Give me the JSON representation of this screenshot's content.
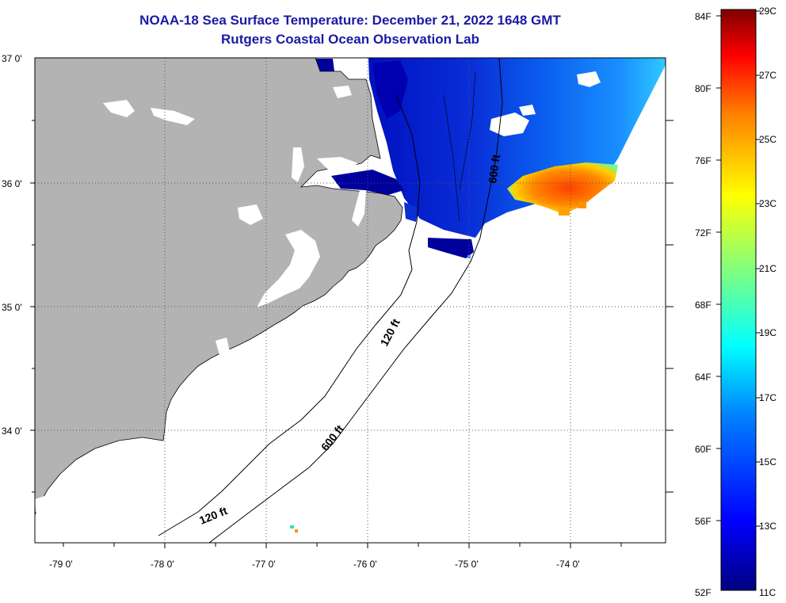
{
  "title": {
    "line1": "NOAA-18 Sea Surface Temperature:  December 21, 2022 1648 GMT",
    "line2": "Rutgers Coastal Ocean Observation Lab"
  },
  "axes": {
    "lat_labels": [
      "37 0'",
      "36 0'",
      "35 0'",
      "34 0'"
    ],
    "lon_labels": [
      "-79 0'",
      "-78 0'",
      "-77 0'",
      "-76 0'",
      "-75 0'",
      "-74 0'"
    ]
  },
  "contours": {
    "label_600_north": "600 ft",
    "label_120_mid": "120 ft",
    "label_600_south": "600 ft",
    "label_120_south": "120 ft"
  },
  "colorbar": {
    "fahrenheit": [
      "84F",
      "80F",
      "76F",
      "72F",
      "68F",
      "64F",
      "60F",
      "56F",
      "52F"
    ],
    "celsius": [
      "29C",
      "27C",
      "25C",
      "23C",
      "21C",
      "19C",
      "17C",
      "15C",
      "13C",
      "11C"
    ]
  },
  "colors": {
    "land": "#b3b3b3",
    "cold_water": "#0a1fcc",
    "deep_blue": "#00009c",
    "warm_core": "#ff5a00",
    "title": "#1a1aa6"
  }
}
